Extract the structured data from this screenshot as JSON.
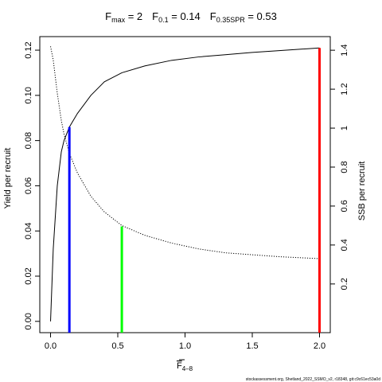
{
  "chart_data": {
    "type": "line",
    "title": {
      "parts": [
        {
          "main": "F",
          "sub": "max",
          "rest": " = 2"
        },
        {
          "main": "F",
          "sub": "0.1",
          "rest": " = 0.14"
        },
        {
          "main": "F",
          "sub": "0.35SPR",
          "rest": " = 0.53"
        }
      ]
    },
    "xlabel": {
      "main": "F",
      "sub": "4–8"
    },
    "ylabel": "Yield per recruit",
    "y2label": "SSB per recruit",
    "footer": "stockassessment.org, Shetland_2022_SSMO_v2, r18348, git:c9c61ec53a0d",
    "xlim": [
      -0.08,
      2.08
    ],
    "ylim": [
      -0.005,
      0.126
    ],
    "y2lim": [
      -0.05,
      1.47
    ],
    "x_ticks": [
      0,
      0.5,
      1,
      1.5,
      2
    ],
    "x_tick_labels": [
      "0.0",
      "0.5",
      "1.0",
      "1.5",
      "2.0"
    ],
    "y_ticks": [
      0,
      0.02,
      0.04,
      0.06,
      0.08,
      0.1,
      0.12
    ],
    "y_tick_labels": [
      "0.00",
      "0.02",
      "0.04",
      "0.06",
      "0.08",
      "0.10",
      "0.12"
    ],
    "y2_ticks": [
      0.2,
      0.4,
      0.6,
      0.8,
      1,
      1.2,
      1.4
    ],
    "y2_tick_labels": [
      "0.2",
      "0.4",
      "0.6",
      "0.8",
      "1",
      "1.2",
      "1.4"
    ],
    "grid": false,
    "series": [
      {
        "axis": "left",
        "style": "solid",
        "color": "#000000",
        "x": [
          0,
          0.02,
          0.05,
          0.08,
          0.1,
          0.14,
          0.2,
          0.3,
          0.4,
          0.53,
          0.7,
          0.9,
          1.1,
          1.3,
          1.5,
          1.7,
          2.0
        ],
        "y": [
          0,
          0.032,
          0.06,
          0.075,
          0.08,
          0.086,
          0.092,
          0.1,
          0.106,
          0.11,
          0.113,
          0.1155,
          0.117,
          0.118,
          0.119,
          0.1198,
          0.121
        ]
      },
      {
        "axis": "right",
        "style": "dotted",
        "color": "#000000",
        "x": [
          0,
          0.02,
          0.05,
          0.08,
          0.1,
          0.14,
          0.2,
          0.3,
          0.4,
          0.53,
          0.7,
          0.9,
          1.1,
          1.3,
          1.5,
          1.7,
          2.0
        ],
        "y": [
          1.42,
          1.35,
          1.18,
          1.04,
          0.97,
          0.87,
          0.77,
          0.65,
          0.57,
          0.5,
          0.45,
          0.41,
          0.38,
          0.36,
          0.35,
          0.34,
          0.33
        ]
      }
    ],
    "vertical_lines": [
      {
        "x": 0.14,
        "ymax": 0.086,
        "color": "#0000ff"
      },
      {
        "x": 0.53,
        "ymax": 0.042,
        "color": "#00ff00"
      },
      {
        "x": 2.0,
        "ymax": 0.121,
        "color": "#ff0000"
      }
    ]
  }
}
